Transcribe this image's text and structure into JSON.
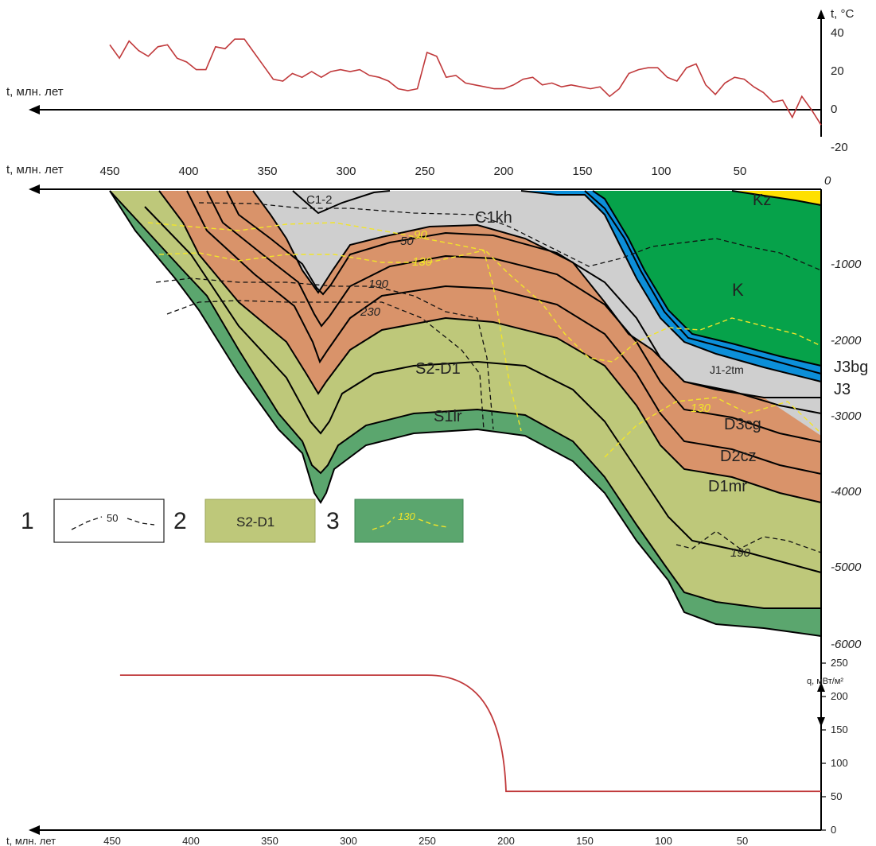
{
  "top_panel": {
    "y_label": "t, °C",
    "x_label": "t, млн. лет",
    "y_ticks": [
      "40",
      "20",
      "0",
      "-20"
    ],
    "series_color": "#c0393b",
    "values_c": [
      34,
      27,
      36,
      31,
      28,
      33,
      34,
      27,
      25,
      21,
      21,
      33,
      32,
      37,
      37,
      30,
      23,
      16,
      15,
      19,
      17,
      20,
      17,
      20,
      21,
      20,
      21,
      18,
      17,
      15,
      11,
      10,
      11,
      30,
      28,
      17,
      18,
      14,
      13,
      12,
      11,
      11,
      13,
      16,
      17,
      13,
      14,
      12,
      13,
      12,
      11,
      12,
      7,
      11,
      19,
      21,
      22,
      22,
      17,
      15,
      22,
      24,
      13,
      8,
      14,
      17,
      16,
      12,
      9,
      4,
      5,
      -4,
      7,
      0,
      -8
    ]
  },
  "main_panel": {
    "x_label": "t, млн. лет",
    "x_ticks": [
      "450",
      "400",
      "350",
      "300",
      "250",
      "200",
      "150",
      "100",
      "50"
    ],
    "x_zero": "0",
    "depth_ticks": [
      "-1000",
      "-2000",
      "-3000",
      "-4000",
      "-5000",
      "-6000"
    ],
    "units": [
      "Kz",
      "K",
      "J1-2tm",
      "J3bg",
      "J3",
      "C1kh",
      "C1-2",
      "D3cg",
      "D2cz",
      "D1mr",
      "S2-D1",
      "S1lr"
    ],
    "isotherms": [
      "50",
      "90",
      "130",
      "190",
      "230",
      "130",
      "190"
    ],
    "colors": {
      "Kz": "#ffe000",
      "K": "#06a24a",
      "J": "#0c8fd9",
      "C": "#cfcfcf",
      "D": "#d9936a",
      "S2D1": "#bec87a",
      "S1lr": "#5ba66e",
      "isotherm_yellow": "#f2e528"
    }
  },
  "legend": {
    "items": [
      {
        "num": "1",
        "text": "50"
      },
      {
        "num": "2",
        "text": "S2-D1"
      },
      {
        "num": "3",
        "text": "130"
      }
    ]
  },
  "bottom_panel": {
    "y_label": "q, мВт/м²",
    "x_label": "t, млн. лет",
    "y_ticks": [
      "250",
      "200",
      "150",
      "100",
      "50",
      "0"
    ],
    "x_ticks": [
      "450",
      "400",
      "350",
      "300",
      "250",
      "200",
      "150",
      "100",
      "50"
    ],
    "series_color": "#c0393b",
    "heat_flow": {
      "before_ma": 250,
      "after_ma": 200,
      "high": 232,
      "low": 58
    }
  }
}
